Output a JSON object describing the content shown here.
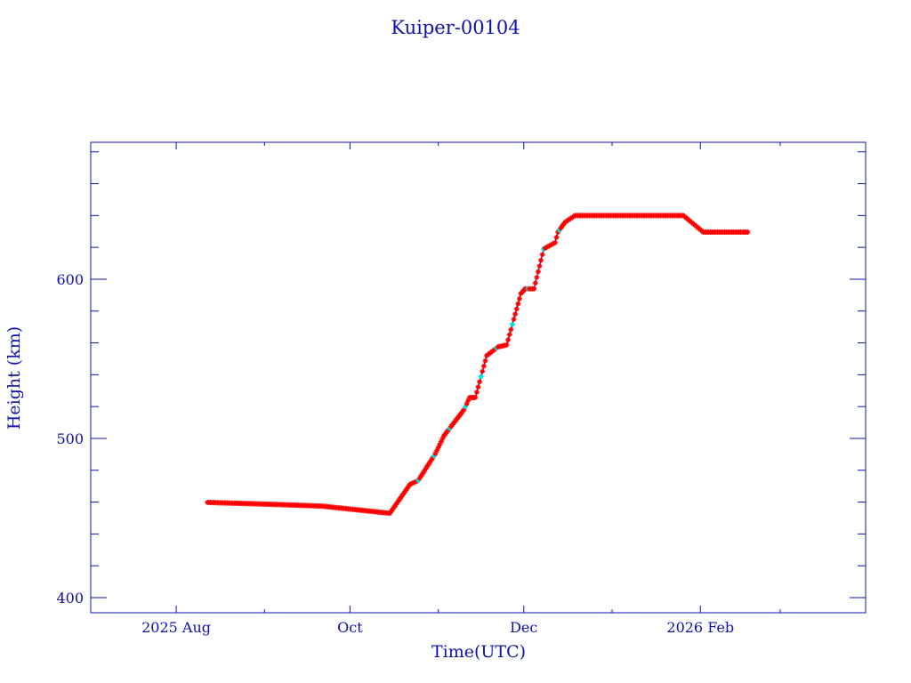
{
  "chart_data": {
    "type": "scatter",
    "title": "Kuiper-00104",
    "xlabel": "Time(UTC)",
    "ylabel": "Height (km)",
    "x_units": "days since 2025-08-01",
    "xlim": [
      -30,
      242
    ],
    "ylim": [
      390.5,
      686
    ],
    "x_ticks": [
      {
        "value": 0,
        "label": "2025 Aug"
      },
      {
        "value": 61,
        "label": "Oct"
      },
      {
        "value": 122,
        "label": "Dec"
      },
      {
        "value": 184,
        "label": "2026 Feb"
      }
    ],
    "x_minor_ticks": [
      31,
      92,
      153,
      212
    ],
    "y_ticks": [
      400,
      500,
      600
    ],
    "y_minor_step": 20,
    "grid": false,
    "series": [
      {
        "name": "Height",
        "marker_color": "#ff0000",
        "alt_marker_color": "#00e0e0",
        "line_color": "#0000a0",
        "x": [
          11,
          32,
          51,
          75,
          82,
          85,
          91,
          94,
          101,
          103,
          105,
          109,
          113,
          116,
          121,
          122.5,
          125.6,
          129,
          133,
          134,
          136.5,
          140,
          178,
          185,
          200.6
        ],
        "y": [
          459.8,
          458.7,
          457.5,
          453,
          471,
          473.7,
          490.5,
          501.7,
          518,
          525.7,
          525.7,
          552,
          557.5,
          558.7,
          591,
          594,
          594,
          619,
          623,
          629.6,
          635.8,
          640,
          640,
          629.6,
          629.6
        ]
      }
    ]
  }
}
